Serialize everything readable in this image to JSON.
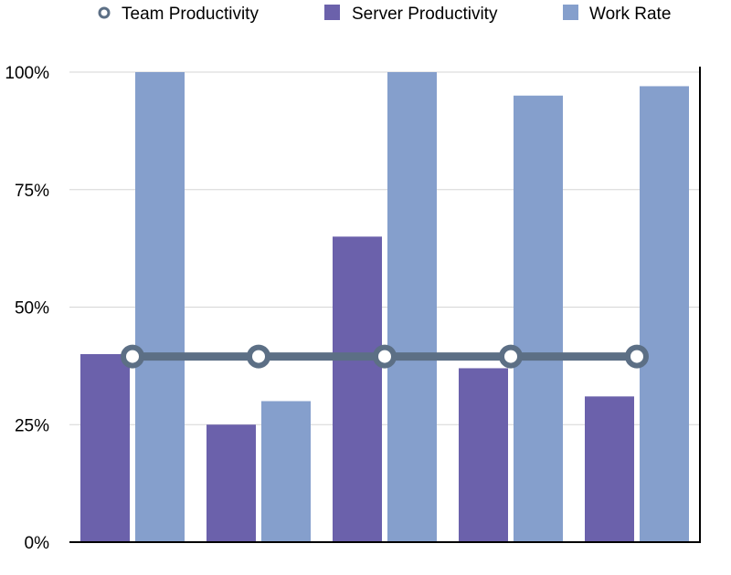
{
  "chart_data": {
    "type": "bar",
    "categories": [
      "",
      "",
      "",
      "",
      ""
    ],
    "series": [
      {
        "name": "Server Productivity",
        "kind": "bar",
        "color": "#6b61ab",
        "values": [
          40,
          25,
          65,
          37,
          31
        ]
      },
      {
        "name": "Work Rate",
        "kind": "bar",
        "color": "#859fcc",
        "values": [
          100,
          30,
          100,
          95,
          97
        ]
      },
      {
        "name": "Team Productivity",
        "kind": "line",
        "color": "#5c6f85",
        "values": [
          39.5,
          39.5,
          39.5,
          39.5,
          39.5
        ]
      }
    ],
    "yticks": [
      "0%",
      "25%",
      "50%",
      "75%",
      "100%"
    ],
    "ylim": [
      0,
      100
    ],
    "grid": true,
    "legend": "top",
    "title": "",
    "xlabel": "",
    "ylabel": ""
  },
  "legend": {
    "items": [
      {
        "label": "Team Productivity",
        "icon": "circle-marker-icon",
        "color": "#5c6f85"
      },
      {
        "label": "Server Productivity",
        "icon": "square-swatch-icon",
        "color": "#6b61ab"
      },
      {
        "label": "Work Rate",
        "icon": "square-swatch-icon",
        "color": "#859fcc"
      }
    ]
  }
}
